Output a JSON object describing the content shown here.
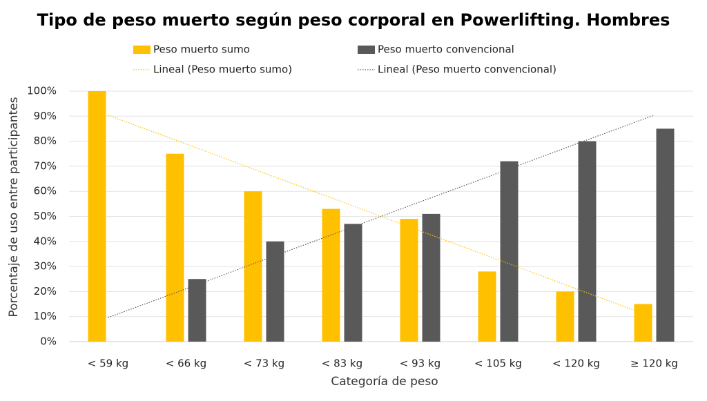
{
  "chart_data": {
    "type": "bar",
    "title": "Tipo de peso muerto según peso corporal en Powerlifting. Hombres",
    "x_label": "Categoría de peso",
    "y_label": "Porcentaje de uso entre participantes",
    "categories": [
      "< 59 kg",
      "< 66 kg",
      "< 73 kg",
      "< 83 kg",
      "< 93 kg",
      "< 105 kg",
      "< 120 kg",
      "≥ 120 kg"
    ],
    "series": [
      {
        "name": "Peso muerto sumo",
        "type": "bar",
        "color": "#ffc000",
        "values": [
          100,
          75,
          60,
          53,
          49,
          28,
          20,
          15
        ]
      },
      {
        "name": "Peso muerto convencional",
        "type": "bar",
        "color": "#595959",
        "values": [
          0,
          25,
          40,
          47,
          51,
          72,
          80,
          85
        ]
      },
      {
        "name": "Lineal (Peso muerto sumo)",
        "type": "line",
        "color": "#ffc000",
        "values": [
          90.4,
          78.9,
          67.3,
          55.8,
          44.2,
          32.7,
          21.1,
          9.6
        ]
      },
      {
        "name": "Lineal (Peso muerto convencional)",
        "type": "line",
        "color": "#595959",
        "values": [
          9.6,
          21.1,
          32.7,
          44.2,
          55.8,
          67.3,
          78.9,
          90.4
        ]
      }
    ],
    "ylim": [
      0,
      100
    ],
    "yticks": [
      {
        "value": 0,
        "label": "0%"
      },
      {
        "value": 10,
        "label": "10%"
      },
      {
        "value": 20,
        "label": "20%"
      },
      {
        "value": 30,
        "label": "30%"
      },
      {
        "value": 40,
        "label": "40%"
      },
      {
        "value": 50,
        "label": "50%"
      },
      {
        "value": 60,
        "label": "60%"
      },
      {
        "value": 70,
        "label": "70%"
      },
      {
        "value": 80,
        "label": "80%"
      },
      {
        "value": 90,
        "label": "90%"
      },
      {
        "value": 100,
        "label": "100%"
      }
    ],
    "grid": true,
    "legend": "top"
  }
}
